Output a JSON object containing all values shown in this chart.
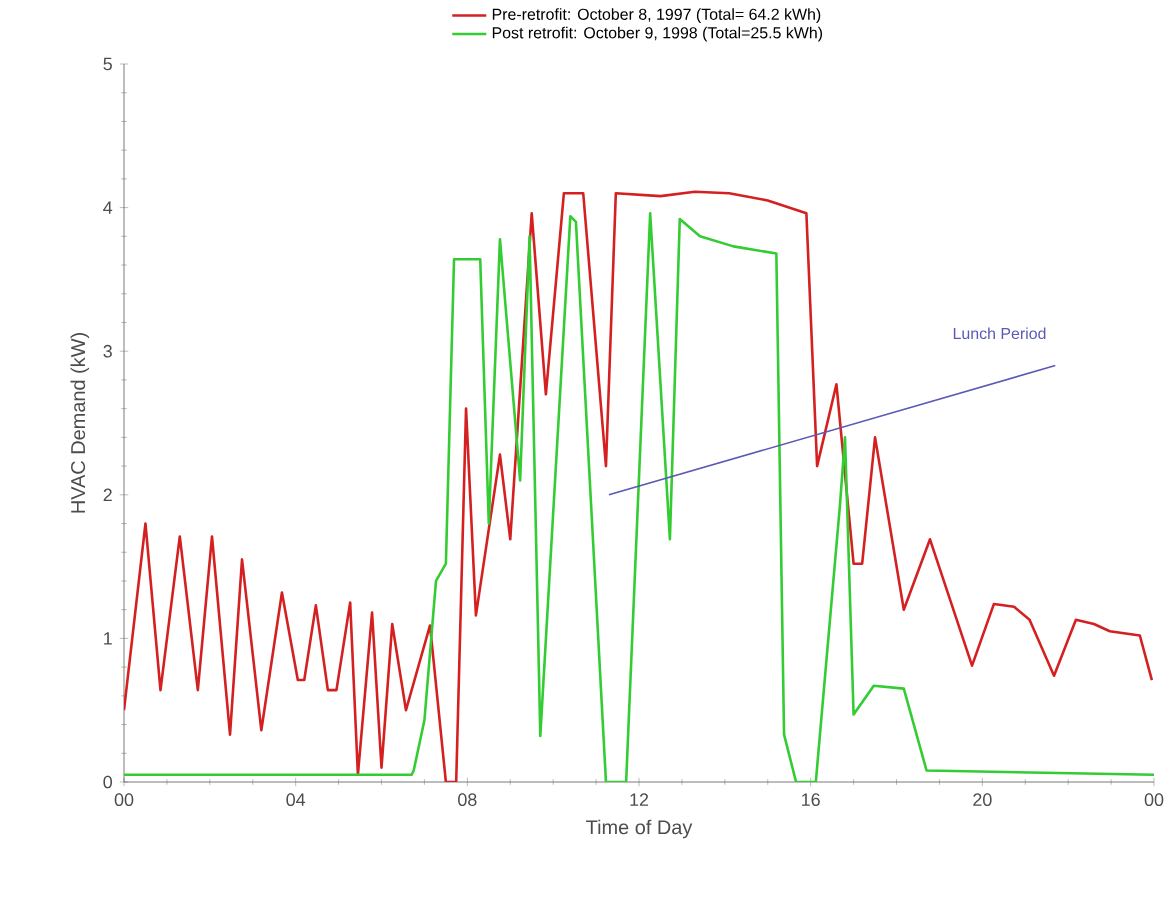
{
  "chart_data": {
    "type": "line",
    "xlabel": "Time of Day",
    "ylabel": "HVAC Demand (kW)",
    "xlim": [
      0,
      24
    ],
    "ylim": [
      0,
      5
    ],
    "xticks": [
      {
        "value": 0,
        "label": "00"
      },
      {
        "value": 4,
        "label": "04"
      },
      {
        "value": 8,
        "label": "08"
      },
      {
        "value": 12,
        "label": "12"
      },
      {
        "value": 16,
        "label": "16"
      },
      {
        "value": 20,
        "label": "20"
      },
      {
        "value": 24,
        "label": "00"
      }
    ],
    "yticks": [
      0,
      1,
      2,
      3,
      4,
      5
    ],
    "grid": false,
    "legend": "top",
    "marker": "none",
    "line_style": "solid",
    "annotations": [
      "Lunch Period"
    ],
    "series": [
      {
        "name": "Pre-retrofit: October 8, 1997 (Total= 64.2 kWh)",
        "color": "#d42020",
        "x": [
          0,
          0.5,
          0.85,
          1.3,
          1.72,
          2.05,
          2.47,
          2.75,
          3.2,
          3.68,
          4.05,
          4.2,
          4.47,
          4.75,
          4.95,
          5.27,
          5.45,
          5.78,
          6.0,
          6.25,
          6.57,
          7.13,
          7.5,
          7.74,
          7.97,
          8.2,
          8.76,
          9.0,
          9.5,
          9.83,
          10.25,
          10.7,
          11.23,
          11.46,
          12.5,
          13.3,
          14.1,
          15.0,
          15.9,
          16.15,
          16.6,
          17.0,
          17.2,
          17.5,
          18.17,
          18.78,
          19.76,
          20.27,
          20.74,
          21.1,
          21.67,
          22.18,
          22.6,
          22.97,
          23.67,
          23.95
        ],
        "values": [
          0.5,
          1.8,
          0.64,
          1.71,
          0.64,
          1.71,
          0.33,
          1.55,
          0.36,
          1.32,
          0.71,
          0.71,
          1.23,
          0.64,
          0.64,
          1.25,
          0.05,
          1.18,
          0.1,
          1.1,
          0.5,
          1.09,
          0.0,
          0.0,
          2.6,
          1.16,
          2.28,
          1.69,
          3.96,
          2.7,
          4.1,
          4.1,
          2.2,
          4.1,
          4.08,
          4.11,
          4.1,
          4.05,
          3.96,
          2.2,
          2.77,
          1.52,
          1.52,
          2.4,
          1.2,
          1.69,
          0.81,
          1.24,
          1.22,
          1.13,
          0.74,
          1.13,
          1.1,
          1.05,
          1.02,
          0.71
        ]
      },
      {
        "name": "Post retrofit: October 9, 1998 (Total=25.5 kWh)",
        "color": "#33cc33",
        "x": [
          0,
          6.7,
          6.75,
          7.0,
          7.27,
          7.5,
          7.69,
          8.3,
          8.5,
          8.76,
          9.23,
          9.45,
          9.7,
          10.4,
          10.53,
          11.23,
          11.7,
          12.26,
          12.72,
          12.95,
          13.42,
          14.2,
          15.2,
          15.38,
          15.66,
          16.12,
          16.68,
          16.8,
          17.0,
          17.47,
          18.17,
          18.7,
          24
        ],
        "values": [
          0.05,
          0.05,
          0.08,
          0.43,
          1.4,
          1.52,
          3.64,
          3.64,
          1.8,
          3.78,
          2.1,
          3.8,
          0.32,
          3.94,
          3.9,
          0.0,
          0.0,
          3.96,
          1.69,
          3.92,
          3.8,
          3.73,
          3.68,
          0.33,
          0.0,
          0.0,
          1.92,
          2.4,
          0.47,
          0.67,
          0.65,
          0.08,
          0.05
        ]
      },
      {
        "type": "line",
        "color": "#5a5ab4",
        "x": [
          11.3,
          21.7
        ],
        "values": [
          2.0,
          2.9
        ]
      }
    ]
  }
}
